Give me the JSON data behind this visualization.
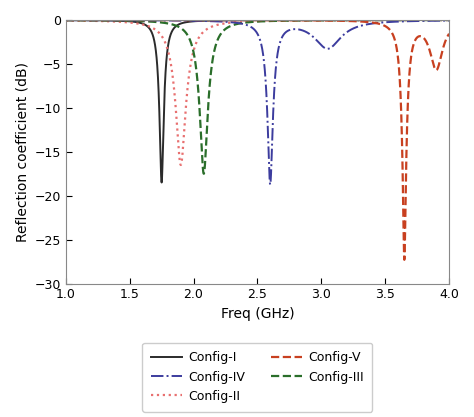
{
  "title": "",
  "xlabel": "Freq (GHz)",
  "ylabel": "Reflection coefficient (dB)",
  "xlim": [
    1.0,
    4.0
  ],
  "ylim": [
    -30,
    0
  ],
  "xticks": [
    1.0,
    1.5,
    2.0,
    2.5,
    3.0,
    3.5,
    4.0
  ],
  "yticks": [
    0,
    -5,
    -10,
    -15,
    -20,
    -25,
    -30
  ],
  "configs": [
    {
      "label": "Config-I",
      "color": "#2b2b2b",
      "linestyle": "solid",
      "linewidth": 1.4,
      "resonances": [
        {
          "fc": 1.75,
          "depth": -18.5,
          "bw": 0.07
        }
      ]
    },
    {
      "label": "Config-II",
      "color": "#e87070",
      "linestyle": "dotted",
      "linewidth": 1.6,
      "resonances": [
        {
          "fc": 1.9,
          "depth": -16.5,
          "bw": 0.16
        }
      ]
    },
    {
      "label": "Config-III",
      "color": "#2a6e2a",
      "linestyle": "dashed",
      "linewidth": 1.6,
      "resonances": [
        {
          "fc": 2.08,
          "depth": -17.5,
          "bw": 0.13
        }
      ]
    },
    {
      "label": "Config-IV",
      "color": "#3c3c9e",
      "linestyle": "dashdot",
      "linewidth": 1.4,
      "resonances": [
        {
          "fc": 2.6,
          "depth": -18.5,
          "bw": 0.09
        },
        {
          "fc": 3.05,
          "depth": -3.2,
          "bw": 0.28
        }
      ]
    },
    {
      "label": "Config-V",
      "color": "#c84020",
      "linestyle": "dashed",
      "linewidth": 1.6,
      "resonances": [
        {
          "fc": 3.65,
          "depth": -27.0,
          "bw": 0.08
        },
        {
          "fc": 3.9,
          "depth": -5.5,
          "bw": 0.14
        }
      ]
    }
  ],
  "legend_order": [
    0,
    3,
    1,
    4,
    2
  ],
  "figsize": [
    4.74,
    4.17
  ],
  "dpi": 100
}
